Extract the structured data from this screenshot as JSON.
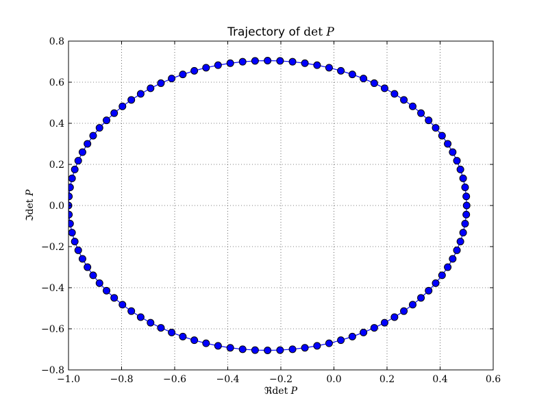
{
  "chart_data": {
    "type": "scatter",
    "title": "Trajectory of det P",
    "title_parts": [
      "Trajectory of ",
      "det",
      " P"
    ],
    "xlabel": "ℜ det P",
    "xlabel_parts": [
      "ℜ",
      "det",
      " P"
    ],
    "ylabel": "ℑ det P",
    "ylabel_parts": [
      "ℑ",
      "det",
      " P"
    ],
    "xlim": [
      -1.0,
      0.6
    ],
    "ylim": [
      -0.8,
      0.8
    ],
    "xticks": [
      -1.0,
      -0.8,
      -0.6,
      -0.4,
      -0.2,
      0.0,
      0.2,
      0.4,
      0.6
    ],
    "xtick_labels": [
      "−1.0",
      "−0.8",
      "−0.6",
      "−0.4",
      "−0.2",
      "0.0",
      "0.2",
      "0.4",
      "0.6"
    ],
    "yticks": [
      -0.8,
      -0.6,
      -0.4,
      -0.2,
      0.0,
      0.2,
      0.4,
      0.6,
      0.8
    ],
    "ytick_labels": [
      "−0.8",
      "−0.6",
      "−0.4",
      "−0.2",
      "0.0",
      "0.2",
      "0.4",
      "0.6",
      "0.8"
    ],
    "grid": true,
    "grid_style": "dotted",
    "series": [
      {
        "shape": "ellipse",
        "center": [
          -0.25,
          0.0
        ],
        "semi_axes": [
          0.75,
          0.705
        ],
        "points": 100,
        "line": true,
        "marker": "circle",
        "color": "#0000ff",
        "marker_edge_color": "#000000"
      }
    ]
  }
}
